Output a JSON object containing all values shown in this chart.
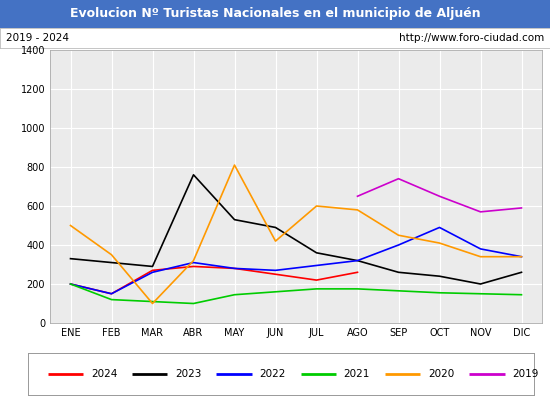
{
  "title": "Evolucion Nº Turistas Nacionales en el municipio de Aljuén",
  "subtitle_left": "2019 - 2024",
  "subtitle_right": "http://www.foro-ciudad.com",
  "title_bg": "#4472c4",
  "title_color": "#ffffff",
  "months": [
    "ENE",
    "FEB",
    "MAR",
    "ABR",
    "MAY",
    "JUN",
    "JUL",
    "AGO",
    "SEP",
    "OCT",
    "NOV",
    "DIC"
  ],
  "ylim": [
    0,
    1400
  ],
  "yticks": [
    0,
    200,
    400,
    600,
    800,
    1000,
    1200,
    1400
  ],
  "series": {
    "2024": {
      "color": "#ff0000",
      "values": [
        200,
        150,
        270,
        290,
        280,
        250,
        220,
        260,
        null,
        null,
        null,
        null
      ]
    },
    "2023": {
      "color": "#000000",
      "values": [
        330,
        310,
        290,
        760,
        530,
        490,
        360,
        320,
        260,
        240,
        200,
        260
      ]
    },
    "2022": {
      "color": "#0000ff",
      "values": [
        200,
        150,
        260,
        310,
        280,
        270,
        295,
        320,
        400,
        490,
        380,
        340
      ]
    },
    "2021": {
      "color": "#00cc00",
      "values": [
        200,
        120,
        110,
        100,
        145,
        160,
        175,
        175,
        165,
        155,
        150,
        145
      ]
    },
    "2020": {
      "color": "#ff9900",
      "values": [
        500,
        350,
        100,
        320,
        810,
        420,
        600,
        580,
        450,
        410,
        340,
        340
      ]
    },
    "2019": {
      "color": "#cc00cc",
      "values": [
        null,
        null,
        null,
        null,
        null,
        null,
        null,
        650,
        740,
        650,
        570,
        590
      ]
    }
  },
  "legend_order": [
    "2024",
    "2023",
    "2022",
    "2021",
    "2020",
    "2019"
  ],
  "bg_color": "#ffffff",
  "plot_bg_color": "#ebebeb",
  "grid_color": "#ffffff",
  "title_fontsize": 9,
  "subtitle_fontsize": 7.5,
  "tick_fontsize": 7,
  "legend_fontsize": 7.5
}
